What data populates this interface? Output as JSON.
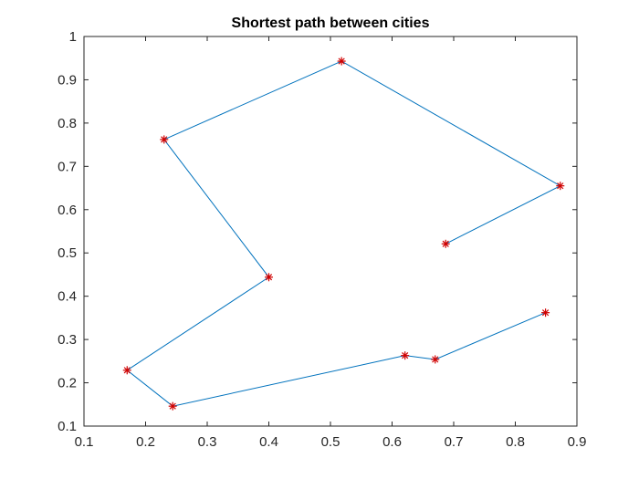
{
  "chart_data": {
    "type": "line",
    "title": "Shortest path between cities",
    "xlabel": "",
    "ylabel": "",
    "xlim": [
      0.1,
      0.9
    ],
    "ylim": [
      0.1,
      1.0
    ],
    "x_ticks": [
      0.1,
      0.2,
      0.3,
      0.4,
      0.5,
      0.6,
      0.7,
      0.8,
      0.9
    ],
    "x_tick_labels": [
      "0.1",
      "0.2",
      "0.3",
      "0.4",
      "0.5",
      "0.6",
      "0.7",
      "0.8",
      "0.9"
    ],
    "y_ticks": [
      0.1,
      0.2,
      0.3,
      0.4,
      0.5,
      0.6,
      0.7,
      0.8,
      0.9,
      1.0
    ],
    "y_tick_labels": [
      "0.1",
      "0.2",
      "0.3",
      "0.4",
      "0.5",
      "0.6",
      "0.7",
      "0.8",
      "0.9",
      "1"
    ],
    "grid": false,
    "series": [
      {
        "line_color": "#0072BD",
        "marker": "asterisk",
        "marker_color": "#D00000",
        "points": [
          {
            "x": 0.687,
            "y": 0.521
          },
          {
            "x": 0.873,
            "y": 0.655
          },
          {
            "x": 0.518,
            "y": 0.943
          },
          {
            "x": 0.23,
            "y": 0.762
          },
          {
            "x": 0.4,
            "y": 0.444
          },
          {
            "x": 0.17,
            "y": 0.229
          },
          {
            "x": 0.244,
            "y": 0.146
          },
          {
            "x": 0.621,
            "y": 0.263
          },
          {
            "x": 0.67,
            "y": 0.254
          },
          {
            "x": 0.849,
            "y": 0.362
          }
        ]
      }
    ]
  }
}
